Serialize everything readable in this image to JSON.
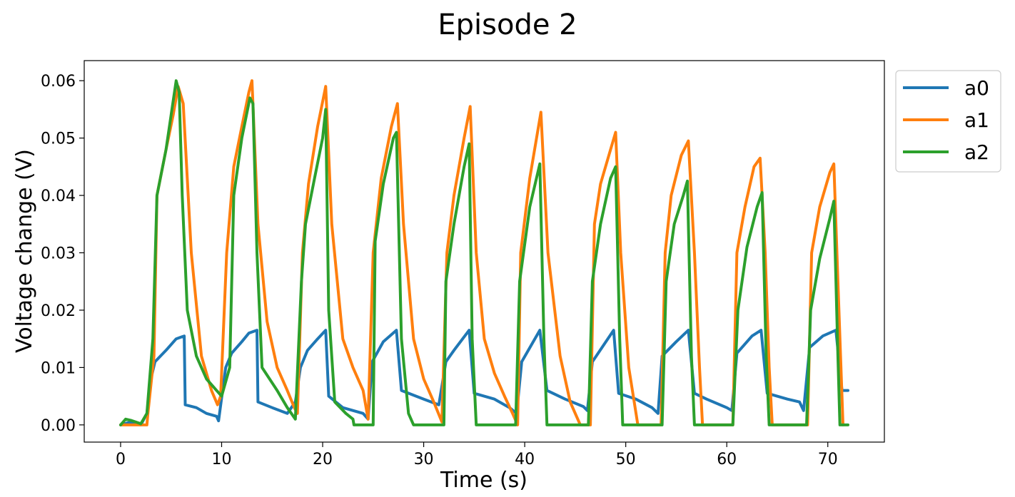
{
  "chart_data": {
    "type": "line",
    "title": "Episode 2",
    "xlabel": "Time (s)",
    "ylabel": "Voltage change (V)",
    "xlim": [
      -3.6,
      75.6
    ],
    "ylim": [
      -0.003,
      0.0635
    ],
    "xticks": [
      0,
      10,
      20,
      30,
      40,
      50,
      60,
      70
    ],
    "xtick_labels": [
      "0",
      "10",
      "20",
      "30",
      "40",
      "50",
      "60",
      "70"
    ],
    "yticks": [
      0.0,
      0.01,
      0.02,
      0.03,
      0.04,
      0.05,
      0.06
    ],
    "ytick_labels": [
      "0.00",
      "0.01",
      "0.02",
      "0.03",
      "0.04",
      "0.05",
      "0.06"
    ],
    "grid": false,
    "legend_position": "outside-top-right",
    "series": [
      {
        "name": "a0",
        "color": "#1f77b4",
        "points": [
          [
            0,
            0
          ],
          [
            1,
            0.0005
          ],
          [
            2,
            0
          ],
          [
            2.6,
            0.002
          ],
          [
            3,
            0.008
          ],
          [
            3.4,
            0.011
          ],
          [
            4.5,
            0.013
          ],
          [
            5.5,
            0.015
          ],
          [
            6.3,
            0.0155
          ],
          [
            6.4,
            0.0035
          ],
          [
            7.5,
            0.003
          ],
          [
            8.5,
            0.002
          ],
          [
            9.5,
            0.0015
          ],
          [
            9.7,
            0.0007
          ],
          [
            10.4,
            0.01
          ],
          [
            11,
            0.0125
          ],
          [
            12,
            0.0145
          ],
          [
            12.7,
            0.016
          ],
          [
            13.5,
            0.0165
          ],
          [
            13.6,
            0.004
          ],
          [
            15,
            0.003
          ],
          [
            16.5,
            0.002
          ],
          [
            17.3,
            0.004
          ],
          [
            17.8,
            0.01
          ],
          [
            18.5,
            0.013
          ],
          [
            19.5,
            0.015
          ],
          [
            20.3,
            0.0165
          ],
          [
            20.6,
            0.005
          ],
          [
            22,
            0.003
          ],
          [
            24,
            0.002
          ],
          [
            24.5,
            0.001
          ],
          [
            24.9,
            0.011
          ],
          [
            26,
            0.0145
          ],
          [
            27.3,
            0.0165
          ],
          [
            27.8,
            0.006
          ],
          [
            30,
            0.0045
          ],
          [
            31.5,
            0.0035
          ],
          [
            32.2,
            0.011
          ],
          [
            33,
            0.013
          ],
          [
            34.5,
            0.0165
          ],
          [
            35,
            0.0055
          ],
          [
            37,
            0.0045
          ],
          [
            38.5,
            0.003
          ],
          [
            39.2,
            0.002
          ],
          [
            39.7,
            0.011
          ],
          [
            41.5,
            0.0165
          ],
          [
            42.2,
            0.006
          ],
          [
            44,
            0.0045
          ],
          [
            45.8,
            0.0032
          ],
          [
            46.2,
            0.0025
          ],
          [
            46.7,
            0.011
          ],
          [
            48.8,
            0.0165
          ],
          [
            49.3,
            0.0055
          ],
          [
            51,
            0.0045
          ],
          [
            52.6,
            0.003
          ],
          [
            53.2,
            0.002
          ],
          [
            53.6,
            0.012
          ],
          [
            55,
            0.0145
          ],
          [
            56.2,
            0.0165
          ],
          [
            56.8,
            0.0055
          ],
          [
            58,
            0.0045
          ],
          [
            60,
            0.003
          ],
          [
            60.5,
            0.0025
          ],
          [
            61,
            0.0125
          ],
          [
            62.5,
            0.0155
          ],
          [
            63.4,
            0.0165
          ],
          [
            64,
            0.0055
          ],
          [
            66,
            0.0045
          ],
          [
            67.2,
            0.004
          ],
          [
            67.6,
            0.0025
          ],
          [
            68.2,
            0.0135
          ],
          [
            69.5,
            0.0155
          ],
          [
            70.8,
            0.0165
          ],
          [
            71.4,
            0.006
          ],
          [
            72,
            0.006
          ]
        ]
      },
      {
        "name": "a1",
        "color": "#ff7f0e",
        "points": [
          [
            0,
            0
          ],
          [
            2.6,
            0
          ],
          [
            2.7,
            0.002
          ],
          [
            3.3,
            0.012
          ],
          [
            3.6,
            0.04
          ],
          [
            4.5,
            0.048
          ],
          [
            5.2,
            0.054
          ],
          [
            5.7,
            0.059
          ],
          [
            6.2,
            0.056
          ],
          [
            7,
            0.03
          ],
          [
            8,
            0.012
          ],
          [
            9,
            0.006
          ],
          [
            9.6,
            0.0035
          ],
          [
            9.9,
            0.005
          ],
          [
            10.5,
            0.03
          ],
          [
            11.2,
            0.045
          ],
          [
            12,
            0.052
          ],
          [
            12.7,
            0.058
          ],
          [
            13,
            0.06
          ],
          [
            13.6,
            0.035
          ],
          [
            14.5,
            0.018
          ],
          [
            15.5,
            0.01
          ],
          [
            16.5,
            0.006
          ],
          [
            17.2,
            0.003
          ],
          [
            17.5,
            0.002
          ],
          [
            18,
            0.03
          ],
          [
            18.6,
            0.042
          ],
          [
            19.5,
            0.052
          ],
          [
            20.3,
            0.059
          ],
          [
            20.9,
            0.035
          ],
          [
            22,
            0.015
          ],
          [
            23,
            0.01
          ],
          [
            24,
            0.006
          ],
          [
            24.5,
            0.001
          ],
          [
            25,
            0.03
          ],
          [
            25.8,
            0.043
          ],
          [
            26.8,
            0.052
          ],
          [
            27.4,
            0.056
          ],
          [
            28,
            0.035
          ],
          [
            29,
            0.015
          ],
          [
            30,
            0.008
          ],
          [
            31,
            0.004
          ],
          [
            31.8,
            0.0005
          ],
          [
            32.3,
            0.03
          ],
          [
            33,
            0.04
          ],
          [
            34,
            0.05
          ],
          [
            34.6,
            0.0555
          ],
          [
            35.2,
            0.03
          ],
          [
            36,
            0.015
          ],
          [
            37,
            0.009
          ],
          [
            38,
            0.005
          ],
          [
            38.8,
            0.002
          ],
          [
            39.3,
            0.0
          ],
          [
            39.6,
            0.03
          ],
          [
            40.5,
            0.043
          ],
          [
            41.6,
            0.0545
          ],
          [
            42.3,
            0.03
          ],
          [
            43.5,
            0.012
          ],
          [
            44.5,
            0.004
          ],
          [
            45.5,
            0.0
          ],
          [
            46.5,
            0.0
          ],
          [
            46.9,
            0.035
          ],
          [
            47.5,
            0.042
          ],
          [
            48.5,
            0.048
          ],
          [
            49,
            0.051
          ],
          [
            49.5,
            0.03
          ],
          [
            50.3,
            0.01
          ],
          [
            51.2,
            0.0
          ],
          [
            53.5,
            0.0
          ],
          [
            53.9,
            0.03
          ],
          [
            54.5,
            0.04
          ],
          [
            55.5,
            0.047
          ],
          [
            56.2,
            0.0495
          ],
          [
            56.8,
            0.03
          ],
          [
            57.3,
            0.01
          ],
          [
            57.6,
            0.0
          ],
          [
            60.6,
            0.0
          ],
          [
            61,
            0.03
          ],
          [
            61.8,
            0.038
          ],
          [
            62.7,
            0.045
          ],
          [
            63.3,
            0.0465
          ],
          [
            63.8,
            0.03
          ],
          [
            64.2,
            0.01
          ],
          [
            64.5,
            0.0
          ],
          [
            68,
            0.0
          ],
          [
            68.4,
            0.03
          ],
          [
            69.2,
            0.038
          ],
          [
            70.2,
            0.044
          ],
          [
            70.6,
            0.0455
          ],
          [
            71,
            0.025
          ],
          [
            71.4,
            0.005
          ],
          [
            71.5,
            0.0
          ]
        ]
      },
      {
        "name": "a2",
        "color": "#2ca02c",
        "points": [
          [
            0,
            0
          ],
          [
            0.5,
            0.001
          ],
          [
            1,
            0.0008
          ],
          [
            2,
            0.0002
          ],
          [
            2.6,
            0.002
          ],
          [
            3.2,
            0.015
          ],
          [
            3.6,
            0.04
          ],
          [
            4.5,
            0.048
          ],
          [
            5.5,
            0.06
          ],
          [
            5.8,
            0.058
          ],
          [
            6.1,
            0.04
          ],
          [
            6.6,
            0.02
          ],
          [
            7.5,
            0.012
          ],
          [
            8.5,
            0.008
          ],
          [
            9.5,
            0.006
          ],
          [
            10,
            0.005
          ],
          [
            10.8,
            0.01
          ],
          [
            11.2,
            0.04
          ],
          [
            12,
            0.05
          ],
          [
            12.8,
            0.057
          ],
          [
            13.1,
            0.056
          ],
          [
            13.5,
            0.03
          ],
          [
            14,
            0.01
          ],
          [
            15.5,
            0.006
          ],
          [
            16.5,
            0.003
          ],
          [
            17.3,
            0.001
          ],
          [
            17.9,
            0.025
          ],
          [
            18.3,
            0.035
          ],
          [
            19.2,
            0.043
          ],
          [
            20,
            0.05
          ],
          [
            20.3,
            0.055
          ],
          [
            20.6,
            0.02
          ],
          [
            21.2,
            0.004
          ],
          [
            22.3,
            0.002
          ],
          [
            23,
            0.001
          ],
          [
            23.1,
            0
          ],
          [
            25,
            0
          ],
          [
            25.2,
            0.032
          ],
          [
            26,
            0.042
          ],
          [
            27,
            0.05
          ],
          [
            27.3,
            0.051
          ],
          [
            27.8,
            0.015
          ],
          [
            28.5,
            0.002
          ],
          [
            29,
            0
          ],
          [
            32,
            0
          ],
          [
            32.2,
            0.025
          ],
          [
            33,
            0.035
          ],
          [
            34,
            0.045
          ],
          [
            34.5,
            0.049
          ],
          [
            34.8,
            0.015
          ],
          [
            35.2,
            0
          ],
          [
            39.1,
            0
          ],
          [
            39.5,
            0.025
          ],
          [
            40.5,
            0.038
          ],
          [
            41.5,
            0.0455
          ],
          [
            41.9,
            0.015
          ],
          [
            42.2,
            0
          ],
          [
            46.3,
            0
          ],
          [
            46.7,
            0.025
          ],
          [
            47.5,
            0.035
          ],
          [
            48.5,
            0.043
          ],
          [
            49,
            0.045
          ],
          [
            49.4,
            0.015
          ],
          [
            49.7,
            0
          ],
          [
            53.6,
            0
          ],
          [
            54,
            0.025
          ],
          [
            54.8,
            0.035
          ],
          [
            55.7,
            0.04
          ],
          [
            56.1,
            0.0425
          ],
          [
            56.5,
            0.012
          ],
          [
            56.8,
            0
          ],
          [
            60.6,
            0
          ],
          [
            61.1,
            0.02
          ],
          [
            62,
            0.031
          ],
          [
            63,
            0.038
          ],
          [
            63.5,
            0.0405
          ],
          [
            63.9,
            0.012
          ],
          [
            64.2,
            0
          ],
          [
            67.9,
            0
          ],
          [
            68.3,
            0.02
          ],
          [
            69.2,
            0.029
          ],
          [
            70.2,
            0.036
          ],
          [
            70.6,
            0.039
          ],
          [
            71,
            0.012
          ],
          [
            71.2,
            0
          ],
          [
            72,
            0
          ]
        ]
      }
    ]
  }
}
